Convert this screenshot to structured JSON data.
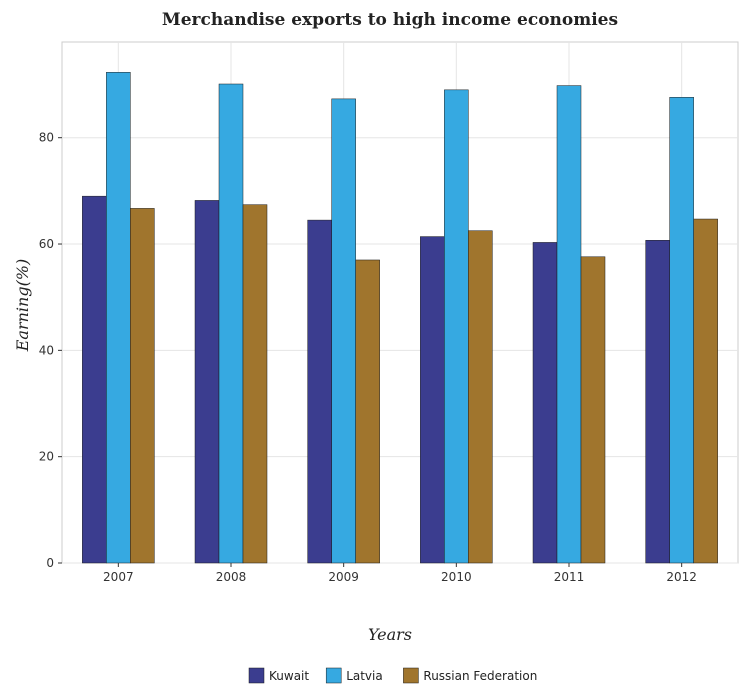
{
  "chart_data": {
    "type": "bar",
    "title": "Merchandise exports to high income economies",
    "xlabel": "Years",
    "ylabel": "Earning(%)",
    "categories": [
      "2007",
      "2008",
      "2009",
      "2010",
      "2011",
      "2012"
    ],
    "ylim": [
      0,
      98
    ],
    "yticks": [
      0,
      20,
      40,
      60,
      80
    ],
    "grid": true,
    "legend_position": "bottom-center",
    "series": [
      {
        "name": "Kuwait",
        "color": "#3b3d8f",
        "values": [
          69.0,
          68.2,
          64.5,
          61.4,
          60.3,
          60.7
        ]
      },
      {
        "name": "Latvia",
        "color": "#36a9e1",
        "values": [
          92.3,
          90.1,
          87.3,
          89.0,
          89.8,
          87.6
        ]
      },
      {
        "name": "Russian Federation",
        "color": "#a0752d",
        "values": [
          66.7,
          67.4,
          57.0,
          62.5,
          57.6,
          64.7
        ]
      }
    ]
  }
}
